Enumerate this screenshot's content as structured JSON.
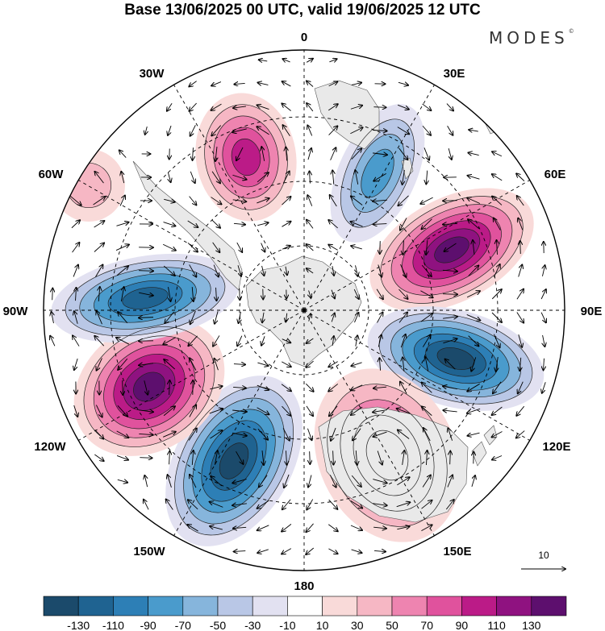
{
  "title": "Base 13/06/2025 00 UTC, valid 19/06/2025 12 UTC",
  "brand": "MODES",
  "brand_mark": "©",
  "longitude_labels": {
    "top": "0",
    "lon30e": "30E",
    "lon60e": "60E",
    "lon90e": "90E",
    "lon120e": "120E",
    "lon150e": "150E",
    "bottom": "180",
    "lon150w": "150W",
    "lon120w": "120W",
    "lon90w": "90W",
    "lon60w": "60W",
    "lon30w": "30W"
  },
  "reference_vector": {
    "label": "10"
  },
  "colorbar": {
    "labels": [
      "-130",
      "-110",
      "-90",
      "-70",
      "-50",
      "-30",
      "-10",
      "10",
      "30",
      "50",
      "70",
      "90",
      "110",
      "130"
    ],
    "colors": [
      "#1b4a6b",
      "#1f6391",
      "#2d7fb6",
      "#4a9bcc",
      "#86b5dc",
      "#b9c7e6",
      "#e2e1f1",
      "#ffffff",
      "#f9dad9",
      "#f6b7c4",
      "#ee84b0",
      "#e0529d",
      "#bb1b87",
      "#8f1280",
      "#5d0f6e"
    ]
  },
  "anomaly_centers": [
    {
      "id": "c1",
      "sign": "positive",
      "peak": 100
    },
    {
      "id": "c2",
      "sign": "negative",
      "peak": -80
    },
    {
      "id": "c3",
      "sign": "positive",
      "peak": 130
    },
    {
      "id": "c4",
      "sign": "negative",
      "peak": -130
    },
    {
      "id": "c5",
      "sign": "positive",
      "peak": 100
    },
    {
      "id": "c6",
      "sign": "negative",
      "peak": -130
    },
    {
      "id": "c7",
      "sign": "positive",
      "peak": 130
    },
    {
      "id": "c8",
      "sign": "negative",
      "peak": -110
    },
    {
      "id": "c9",
      "sign": "positive",
      "peak": 30
    }
  ]
}
